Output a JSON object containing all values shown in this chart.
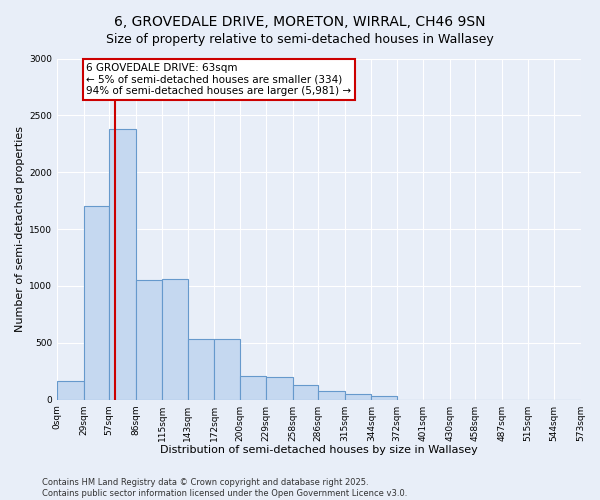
{
  "title_line1": "6, GROVEDALE DRIVE, MORETON, WIRRAL, CH46 9SN",
  "title_line2": "Size of property relative to semi-detached houses in Wallasey",
  "xlabel": "Distribution of semi-detached houses by size in Wallasey",
  "ylabel": "Number of semi-detached properties",
  "bin_edges": [
    0,
    29,
    57,
    86,
    115,
    143,
    172,
    200,
    229,
    258,
    286,
    315,
    344,
    372,
    401,
    430,
    458,
    487,
    515,
    544,
    573
  ],
  "bin_labels": [
    "0sqm",
    "29sqm",
    "57sqm",
    "86sqm",
    "115sqm",
    "143sqm",
    "172sqm",
    "200sqm",
    "229sqm",
    "258sqm",
    "286sqm",
    "315sqm",
    "344sqm",
    "372sqm",
    "401sqm",
    "430sqm",
    "458sqm",
    "487sqm",
    "515sqm",
    "544sqm",
    "573sqm"
  ],
  "bar_heights": [
    160,
    1700,
    2380,
    1050,
    1060,
    530,
    530,
    210,
    200,
    130,
    80,
    50,
    30,
    0,
    0,
    0,
    0,
    0,
    0,
    0
  ],
  "bar_color": "#c5d8f0",
  "bar_edge_color": "#6699cc",
  "vline_x": 63,
  "vline_color": "#cc0000",
  "annotation_text": "6 GROVEDALE DRIVE: 63sqm\n← 5% of semi-detached houses are smaller (334)\n94% of semi-detached houses are larger (5,981) →",
  "annotation_box_facecolor": "#ffffff",
  "annotation_box_edgecolor": "#cc0000",
  "ylim": [
    0,
    3000
  ],
  "yticks": [
    0,
    500,
    1000,
    1500,
    2000,
    2500,
    3000
  ],
  "background_color": "#e8eef8",
  "grid_color": "#ffffff",
  "footer_line1": "Contains HM Land Registry data © Crown copyright and database right 2025.",
  "footer_line2": "Contains public sector information licensed under the Open Government Licence v3.0.",
  "title_fontsize": 10,
  "subtitle_fontsize": 9,
  "axis_label_fontsize": 8,
  "tick_fontsize": 6.5,
  "annotation_fontsize": 7.5,
  "footer_fontsize": 6
}
